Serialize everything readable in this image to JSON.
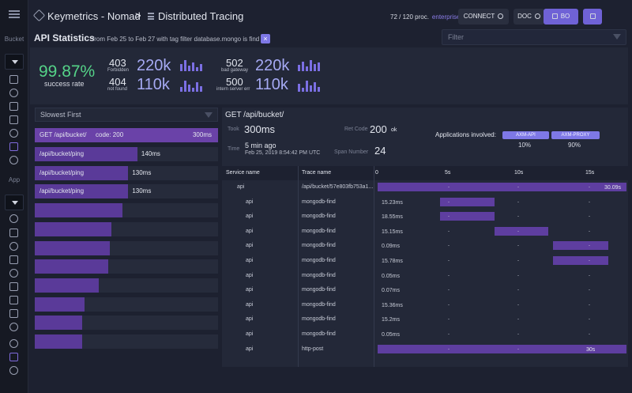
{
  "nav": {
    "bucket_label": "Bucket",
    "app_label": "App",
    "bucket_icons": [
      "database-icon",
      "hexagon-icon",
      "dashboard-icon",
      "transactions-icon",
      "globe-icon",
      "tracing-icon",
      "settings-icon"
    ],
    "app_icons": [
      "gauge-icon",
      "line-chart-icon",
      "bug-icon",
      "log-icon",
      "play-icon",
      "list-icon",
      "bar-chart-icon",
      "memory-icon",
      "globe-icon",
      "tracing-icon",
      "settings-icon"
    ]
  },
  "header": {
    "bucket_name": "Keymetrics - Nomad",
    "separator": ">",
    "page_name": "Distributed Tracing",
    "processes": "72 / 120 proc.",
    "plan": "enterprise",
    "connect_label": "CONNECT",
    "doc_label": "DOC",
    "bo_label": "BO"
  },
  "stats": {
    "title": "API Statistics",
    "subtitle": "from Feb 25 to Feb 27 with tag filter database.mongo is find",
    "filter_remove": "×",
    "filter_placeholder": "Filter",
    "success_rate": "99.87%",
    "success_label": "success rate",
    "codes": [
      {
        "code": "403",
        "label": "Forbidden",
        "count": "220k"
      },
      {
        "code": "404",
        "label": "not found",
        "count": "110k"
      },
      {
        "code": "502",
        "label": "bad gateway",
        "count": "220k"
      },
      {
        "code": "500",
        "label": "intern server err",
        "count": "110k"
      }
    ]
  },
  "list": {
    "sort_label": "Slowest First",
    "selected": {
      "route": "GET /api/bucket/",
      "code": "code: 200",
      "duration": "300ms"
    },
    "items": [
      {
        "route": "/api/bucket/ping",
        "duration": "140ms",
        "fill": 0.56
      },
      {
        "route": "/api/bucket/ping",
        "duration": "130ms",
        "fill": 0.51
      },
      {
        "route": "/api/bucket/ping",
        "duration": "130ms",
        "fill": 0.51
      },
      {
        "route": "",
        "duration": "",
        "fill": 0.48
      },
      {
        "route": "",
        "duration": "",
        "fill": 0.42
      },
      {
        "route": "",
        "duration": "",
        "fill": 0.41
      },
      {
        "route": "",
        "duration": "",
        "fill": 0.4
      },
      {
        "route": "",
        "duration": "",
        "fill": 0.35
      },
      {
        "route": "",
        "duration": "",
        "fill": 0.27
      },
      {
        "route": "",
        "duration": "",
        "fill": 0.26
      },
      {
        "route": "",
        "duration": "",
        "fill": 0.26
      }
    ]
  },
  "detail": {
    "title": "GET /api/bucket/",
    "took_label": "Took",
    "took_value": "300ms",
    "ret_label": "Ret Code",
    "ret_value": "200",
    "ret_text": "ok",
    "time_label": "Time",
    "time_ago": "5 min ago",
    "time_full": "Feb 25, 2019 8:54:42 PM UTC",
    "span_label": "Span Number",
    "span_value": "24",
    "apps_label": "Applications involved:",
    "apps": [
      {
        "name": "AXM-API",
        "pct": "10%"
      },
      {
        "name": "AXM-PROXY",
        "pct": "90%"
      }
    ]
  },
  "table": {
    "col_service": "Service name",
    "col_trace": "Trace name",
    "ticks": [
      "0",
      "5s",
      "10s",
      "15s"
    ],
    "rows": [
      {
        "service": "api",
        "trace": "/api/bucket/57e803fb753a1...",
        "duration": "",
        "start": 0.0,
        "end": 1.0,
        "label": "30.09s"
      },
      {
        "service": "api",
        "trace": "mongodb-find",
        "duration": "15.23ms",
        "start": 0.26,
        "end": 0.5,
        "label": ""
      },
      {
        "service": "api",
        "trace": "mongodb-find",
        "duration": "18.55ms",
        "start": 0.26,
        "end": 0.5,
        "label": ""
      },
      {
        "service": "api",
        "trace": "mongodb-find",
        "duration": "15.15ms",
        "start": 0.5,
        "end": 0.73,
        "label": ""
      },
      {
        "service": "api",
        "trace": "mongodb-find",
        "duration": "0.09ms",
        "start": 0.76,
        "end": 1.0,
        "label": ""
      },
      {
        "service": "api",
        "trace": "mongodb-find",
        "duration": "15.78ms",
        "start": 0.76,
        "end": 1.0,
        "label": ""
      },
      {
        "service": "api",
        "trace": "mongodb-find",
        "duration": "0.05ms",
        "start": null,
        "end": null,
        "label": ""
      },
      {
        "service": "api",
        "trace": "mongodb-find",
        "duration": "0.07ms",
        "start": null,
        "end": null,
        "label": ""
      },
      {
        "service": "api",
        "trace": "mongodb-find",
        "duration": "15.36ms",
        "start": null,
        "end": null,
        "label": ""
      },
      {
        "service": "api",
        "trace": "mongodb-find",
        "duration": "15.2ms",
        "start": null,
        "end": null,
        "label": ""
      },
      {
        "service": "api",
        "trace": "mongodb-find",
        "duration": "0.05ms",
        "start": null,
        "end": null,
        "label": ""
      },
      {
        "service": "api",
        "trace": "http-post",
        "duration": "",
        "start": 0.0,
        "end": 1.0,
        "label": "30s"
      }
    ]
  },
  "colors": {
    "accent": "#6f62d6",
    "bar": "#5a3a99",
    "success": "#55d388",
    "big_number": "#a5a9f3"
  }
}
